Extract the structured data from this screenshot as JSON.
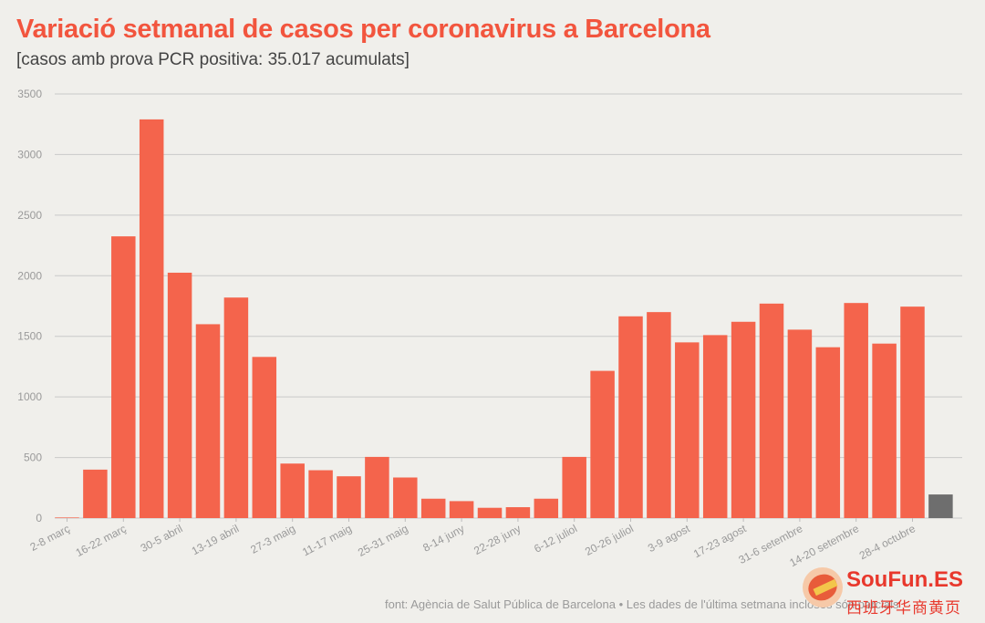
{
  "header": {
    "title": "Variació setmanal de casos per coronavirus a Barcelona",
    "subtitle": "[casos amb prova PCR positiva: 35.017 acumulats]"
  },
  "source": "font: Agència de Salut Pública de Barcelona • Les dades de l'última setmana incloses són parcials",
  "watermark": {
    "brand": "SouFun.ES",
    "tagline": "西班牙华商黄页"
  },
  "colors": {
    "bar": "#f4644c",
    "partial_bar": "#6e6e6e",
    "title": "#f2553e",
    "grid": "#c9c9c9",
    "axis_text": "#9a9a9a"
  },
  "chart_data": {
    "type": "bar",
    "title": "Variació setmanal de casos per coronavirus a Barcelona",
    "subtitle": "[casos amb prova PCR positiva: 35.017 acumulats]",
    "ylim": [
      0,
      3500
    ],
    "yticks": [
      0,
      500,
      1000,
      1500,
      2000,
      2500,
      3000,
      3500
    ],
    "grid": "horizontal",
    "xtick_labels": [
      "2-8 març",
      "16-22 març",
      "30-5 abril",
      "13-19 abril",
      "27-3 maig",
      "11-17 maig",
      "25-31 maig",
      "8-14 juny",
      "22-28 juny",
      "6-12 juliol",
      "20-26 juliol",
      "3-9 agost",
      "17-23 agost",
      "31-6 setembre",
      "14-20 setembre",
      "28-4 octubre"
    ],
    "values": [
      5,
      400,
      2325,
      3290,
      2025,
      1600,
      1820,
      1330,
      450,
      395,
      345,
      505,
      335,
      160,
      140,
      85,
      90,
      160,
      505,
      1215,
      1665,
      1700,
      1450,
      1510,
      1620,
      1770,
      1555,
      1410,
      1775,
      1440,
      1745,
      195
    ],
    "partial_last": true
  }
}
